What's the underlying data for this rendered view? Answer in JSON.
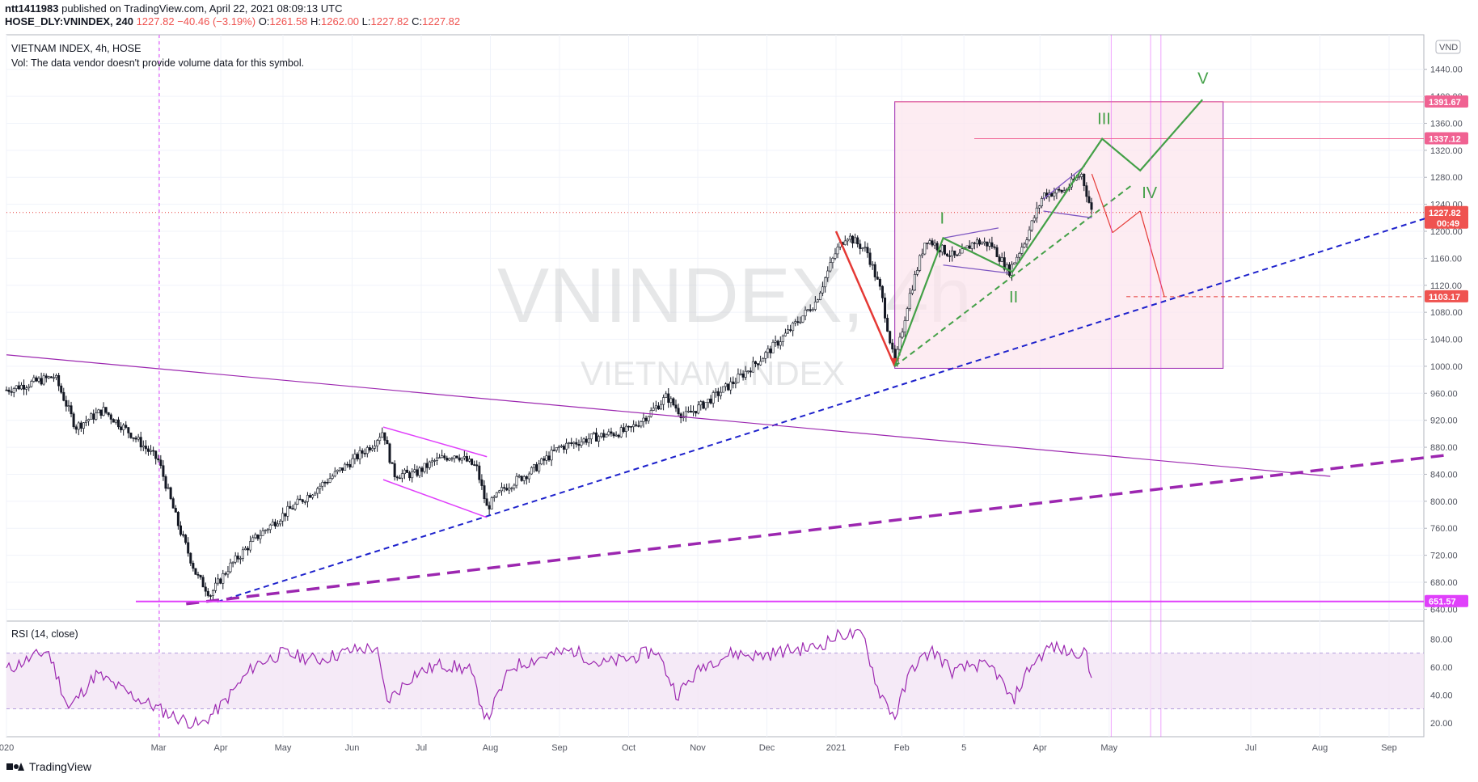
{
  "header": {
    "publisher": "ntt1411983",
    "published_line": "published on TradingView.com, April 22, 2021 08:09:13 UTC",
    "ohlc_line": {
      "symbol": "HOSE_DLY:VNINDEX, 240",
      "last": "1227.82",
      "change": "−40.46 (−3.19%)",
      "o_label": "O:",
      "o": "1261.58",
      "h_label": "H:",
      "h": "1262.00",
      "l_label": "L:",
      "l": "1227.82",
      "c_label": "C:",
      "c": "1227.82"
    }
  },
  "legend": {
    "title": "VIETNAM INDEX, 4h, HOSE",
    "vol_note": "Vol: The data vendor doesn't provide volume data for this symbol.",
    "rsi_label": "RSI (14, close)"
  },
  "watermark": {
    "symbol": "VNINDEX, 4h",
    "name": "VIETNAM INDEX"
  },
  "currency_badge": "VND",
  "footer": {
    "brand": "TradingView"
  },
  "colors": {
    "up": "#26a69a",
    "down": "#ef5350",
    "candle": "#131722",
    "blue_trend": "#1e22cc",
    "purple_trend": "#9c27b0",
    "magenta": "#e040fb",
    "wave_green": "#43a047",
    "wave_red": "#e53935",
    "box_fill": "#fce4ec",
    "rsi": "#9c27b0"
  },
  "chart_data": {
    "type": "candlestick",
    "symbol": "HOSE_DLY:VNINDEX",
    "interval": "240",
    "y_axis_ticks": [
      640,
      680,
      720,
      760,
      800,
      840,
      880,
      920,
      960,
      1000,
      1040,
      1080,
      1120,
      1160,
      1200,
      1240,
      1280,
      1320,
      1360,
      1400,
      1440
    ],
    "ylim": [
      625,
      1460
    ],
    "x_axis_labels": [
      "020",
      "Mar",
      "Apr",
      "May",
      "Jun",
      "Jul",
      "Aug",
      "Sep",
      "Oct",
      "Nov",
      "Dec",
      "2021",
      "Feb",
      "5",
      "Apr",
      "May",
      "Jul",
      "Aug",
      "Sep"
    ],
    "x_axis_label_months": [
      0,
      2.2,
      3.1,
      4.0,
      5.0,
      6.0,
      7.0,
      8.0,
      9.0,
      10.0,
      11.0,
      12.0,
      12.95,
      13.85,
      14.95,
      15.95,
      18.0,
      19.0,
      20.0
    ],
    "price_path_monthly": [
      {
        "m": 0.0,
        "v": 965
      },
      {
        "m": 0.7,
        "v": 985
      },
      {
        "m": 1.0,
        "v": 910
      },
      {
        "m": 1.4,
        "v": 935
      },
      {
        "m": 1.8,
        "v": 900
      },
      {
        "m": 2.2,
        "v": 860
      },
      {
        "m": 2.5,
        "v": 760
      },
      {
        "m": 2.75,
        "v": 690
      },
      {
        "m": 2.95,
        "v": 662
      },
      {
        "m": 3.2,
        "v": 700
      },
      {
        "m": 3.6,
        "v": 745
      },
      {
        "m": 4.0,
        "v": 780
      },
      {
        "m": 4.5,
        "v": 820
      },
      {
        "m": 5.0,
        "v": 860
      },
      {
        "m": 5.3,
        "v": 885
      },
      {
        "m": 5.45,
        "v": 905
      },
      {
        "m": 5.6,
        "v": 840
      },
      {
        "m": 5.9,
        "v": 840
      },
      {
        "m": 6.2,
        "v": 860
      },
      {
        "m": 6.5,
        "v": 870
      },
      {
        "m": 6.8,
        "v": 850
      },
      {
        "m": 6.95,
        "v": 790
      },
      {
        "m": 7.2,
        "v": 820
      },
      {
        "m": 7.6,
        "v": 845
      },
      {
        "m": 8.0,
        "v": 880
      },
      {
        "m": 8.5,
        "v": 895
      },
      {
        "m": 9.0,
        "v": 905
      },
      {
        "m": 9.3,
        "v": 930
      },
      {
        "m": 9.55,
        "v": 955
      },
      {
        "m": 9.8,
        "v": 925
      },
      {
        "m": 10.1,
        "v": 945
      },
      {
        "m": 10.5,
        "v": 975
      },
      {
        "m": 10.9,
        "v": 1010
      },
      {
        "m": 11.3,
        "v": 1050
      },
      {
        "m": 11.7,
        "v": 1095
      },
      {
        "m": 12.0,
        "v": 1170
      },
      {
        "m": 12.15,
        "v": 1195
      },
      {
        "m": 12.45,
        "v": 1170
      },
      {
        "m": 12.65,
        "v": 1110
      },
      {
        "m": 12.85,
        "v": 1000
      },
      {
        "m": 13.05,
        "v": 1100
      },
      {
        "m": 13.3,
        "v": 1190
      },
      {
        "m": 13.5,
        "v": 1175
      },
      {
        "m": 13.75,
        "v": 1160
      },
      {
        "m": 14.0,
        "v": 1185
      },
      {
        "m": 14.25,
        "v": 1180
      },
      {
        "m": 14.5,
        "v": 1140
      },
      {
        "m": 14.75,
        "v": 1190
      },
      {
        "m": 15.0,
        "v": 1255
      },
      {
        "m": 15.3,
        "v": 1260
      },
      {
        "m": 15.55,
        "v": 1285
      },
      {
        "m": 15.7,
        "v": 1228
      }
    ],
    "price_labels": [
      {
        "value": 1391.67,
        "text": "1391.67",
        "color": "#f06292"
      },
      {
        "value": 1337.12,
        "text": "1337.12",
        "color": "#f06292"
      },
      {
        "value": 1227.82,
        "text": "1227.82",
        "sub": "00:49",
        "color": "#ef5350"
      },
      {
        "value": 1103.17,
        "text": "1103.17",
        "color": "#ef5350"
      },
      {
        "value": 651.57,
        "text": "651.57",
        "color": "#e040fb"
      }
    ],
    "projection_box": {
      "m0": 12.85,
      "m1": 17.6,
      "v0": 997,
      "v1": 1392
    },
    "elliott_waves": {
      "labels": [
        "I",
        "II",
        "III",
        "IV",
        "V"
      ],
      "points": [
        {
          "m": 12.85,
          "v": 1000
        },
        {
          "m": 13.55,
          "v": 1190
        },
        {
          "m": 14.55,
          "v": 1140
        },
        {
          "m": 15.85,
          "v": 1337
        },
        {
          "m": 16.4,
          "v": 1290
        },
        {
          "m": 17.3,
          "v": 1395
        }
      ]
    },
    "red_scenario": {
      "drop": [
        {
          "m": 12.0,
          "v": 1200
        },
        {
          "m": 12.85,
          "v": 1000
        }
      ],
      "alt": [
        {
          "m": 15.7,
          "v": 1285
        },
        {
          "m": 16.0,
          "v": 1198
        },
        {
          "m": 16.4,
          "v": 1230
        },
        {
          "m": 16.75,
          "v": 1103
        }
      ]
    },
    "trendlines": [
      {
        "name": "blue-dashed-support",
        "from": {
          "m": 3.05,
          "v": 651
        },
        "to": {
          "m": 20.8,
          "v": 1228
        },
        "color": "#1e22cc",
        "style": "dashed"
      },
      {
        "name": "purple-dashed-support",
        "from": {
          "m": 2.6,
          "v": 648
        },
        "to": {
          "m": 20.8,
          "v": 868
        },
        "color": "#9c27b0",
        "style": "dashed-thick"
      },
      {
        "name": "purple-resistance",
        "from": {
          "m": 0.0,
          "v": 1017
        },
        "to": {
          "m": 19.15,
          "v": 837
        },
        "color": "#9c27b0",
        "style": "solid"
      },
      {
        "name": "green-dashed-channel",
        "from": {
          "m": 12.85,
          "v": 1000
        },
        "to": {
          "m": 16.3,
          "v": 1270
        },
        "color": "#43a047",
        "style": "dashed"
      },
      {
        "name": "horizontal-651",
        "value": 651.57,
        "color": "#e040fb"
      }
    ],
    "rsi": {
      "title": "RSI (14, close)",
      "y_ticks": [
        20,
        40,
        60,
        80
      ],
      "ylim": [
        10,
        93
      ],
      "band": [
        30,
        70
      ],
      "values_monthly": [
        {
          "m": 0.0,
          "v": 58
        },
        {
          "m": 0.6,
          "v": 72
        },
        {
          "m": 0.9,
          "v": 30
        },
        {
          "m": 1.3,
          "v": 55
        },
        {
          "m": 1.8,
          "v": 40
        },
        {
          "m": 2.4,
          "v": 25
        },
        {
          "m": 2.8,
          "v": 18
        },
        {
          "m": 3.1,
          "v": 32
        },
        {
          "m": 3.6,
          "v": 62
        },
        {
          "m": 4.0,
          "v": 70
        },
        {
          "m": 4.5,
          "v": 65
        },
        {
          "m": 5.0,
          "v": 72
        },
        {
          "m": 5.35,
          "v": 74
        },
        {
          "m": 5.5,
          "v": 35
        },
        {
          "m": 5.9,
          "v": 55
        },
        {
          "m": 6.3,
          "v": 62
        },
        {
          "m": 6.7,
          "v": 58
        },
        {
          "m": 6.95,
          "v": 22
        },
        {
          "m": 7.3,
          "v": 60
        },
        {
          "m": 7.8,
          "v": 68
        },
        {
          "m": 8.2,
          "v": 72
        },
        {
          "m": 8.6,
          "v": 62
        },
        {
          "m": 9.0,
          "v": 66
        },
        {
          "m": 9.4,
          "v": 72
        },
        {
          "m": 9.7,
          "v": 40
        },
        {
          "m": 10.1,
          "v": 62
        },
        {
          "m": 10.5,
          "v": 70
        },
        {
          "m": 10.9,
          "v": 68
        },
        {
          "m": 11.3,
          "v": 72
        },
        {
          "m": 11.7,
          "v": 74
        },
        {
          "m": 12.1,
          "v": 84
        },
        {
          "m": 12.4,
          "v": 82
        },
        {
          "m": 12.6,
          "v": 45
        },
        {
          "m": 12.85,
          "v": 24
        },
        {
          "m": 13.1,
          "v": 60
        },
        {
          "m": 13.4,
          "v": 72
        },
        {
          "m": 13.7,
          "v": 56
        },
        {
          "m": 14.0,
          "v": 62
        },
        {
          "m": 14.3,
          "v": 58
        },
        {
          "m": 14.55,
          "v": 35
        },
        {
          "m": 14.8,
          "v": 60
        },
        {
          "m": 15.1,
          "v": 75
        },
        {
          "m": 15.4,
          "v": 70
        },
        {
          "m": 15.6,
          "v": 72
        },
        {
          "m": 15.72,
          "v": 45
        }
      ]
    }
  }
}
